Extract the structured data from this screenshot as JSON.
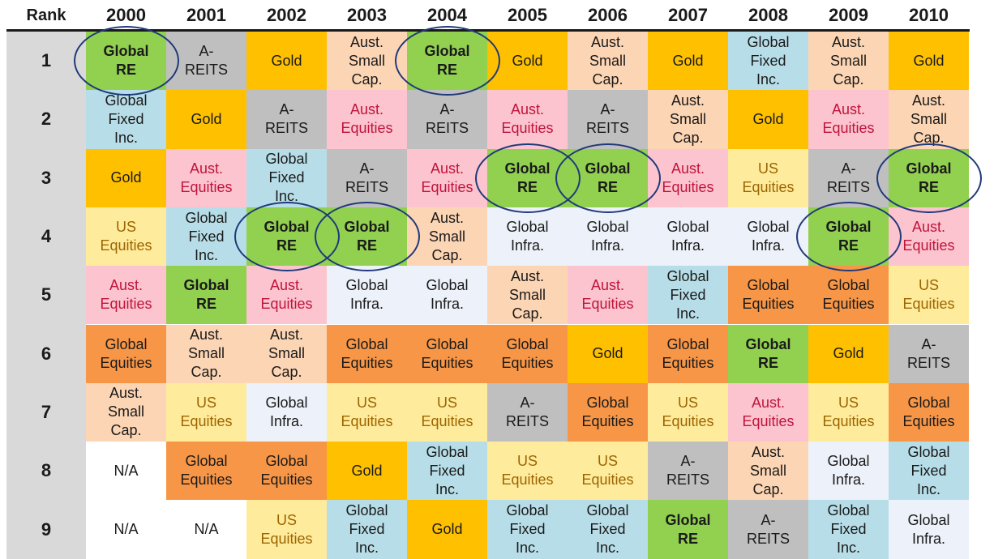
{
  "chart_data": {
    "type": "table",
    "header": {
      "rank_label": "Rank",
      "years": [
        "2000",
        "2001",
        "2002",
        "2003",
        "2004",
        "2005",
        "2006",
        "2007",
        "2008",
        "2009",
        "2010"
      ]
    },
    "ranks": [
      "1",
      "2",
      "3",
      "4",
      "5",
      "6",
      "7",
      "8",
      "9"
    ],
    "categories": {
      "global_re": {
        "label": "Global\nRE",
        "bg": "#92d050",
        "fg": "#1a1a1a",
        "bold": true
      },
      "areits": {
        "label": "A-\nREITS",
        "bg": "#bfbfbf",
        "fg": "#1a1a1a",
        "bold": false
      },
      "gold": {
        "label": "Gold",
        "bg": "#ffc000",
        "fg": "#1a1a1a",
        "bold": false
      },
      "aus_small": {
        "label": "Aust.\nSmall\nCap.",
        "bg": "#fcd5b4",
        "fg": "#1a1a1a",
        "bold": false
      },
      "global_fixed": {
        "label": "Global\nFixed\nInc.",
        "bg": "#b7dee8",
        "fg": "#1a1a1a",
        "bold": false
      },
      "aus_eq": {
        "label": "Aust.\nEquities",
        "bg": "#fbc4cf",
        "fg": "#c0143c",
        "bold": false
      },
      "us_eq": {
        "label": "US\nEquities",
        "bg": "#ffeb9c",
        "fg": "#9c6500",
        "bold": false
      },
      "global_infra": {
        "label": "Global\nInfra.",
        "bg": "#edf1f9",
        "fg": "#1a1a1a",
        "bold": false
      },
      "global_eq": {
        "label": "Global\nEquities",
        "bg": "#f79646",
        "fg": "#1a1a1a",
        "bold": false
      },
      "na": {
        "label": "N/A",
        "bg": "#ffffff",
        "fg": "#1a1a1a",
        "bold": false
      }
    },
    "grid": [
      [
        "global_re",
        "areits",
        "gold",
        "aus_small",
        "global_re",
        "gold",
        "aus_small",
        "gold",
        "global_fixed",
        "aus_small",
        "gold"
      ],
      [
        "global_fixed",
        "gold",
        "areits",
        "aus_eq",
        "areits",
        "aus_eq",
        "areits",
        "aus_small",
        "gold",
        "aus_eq",
        "aus_small"
      ],
      [
        "gold",
        "aus_eq",
        "global_fixed",
        "areits",
        "aus_eq",
        "global_re",
        "global_re",
        "aus_eq",
        "us_eq",
        "areits",
        "global_re"
      ],
      [
        "us_eq",
        "global_fixed",
        "global_re",
        "global_re",
        "aus_small",
        "global_infra",
        "global_infra",
        "global_infra",
        "global_infra",
        "global_re",
        "aus_eq"
      ],
      [
        "aus_eq",
        "global_re",
        "aus_eq",
        "global_infra",
        "global_infra",
        "aus_small",
        "aus_eq",
        "global_fixed",
        "global_eq",
        "global_eq",
        "us_eq"
      ],
      [
        "global_eq",
        "aus_small",
        "aus_small",
        "global_eq",
        "global_eq",
        "global_eq",
        "gold",
        "global_eq",
        "global_re",
        "gold",
        "areits"
      ],
      [
        "aus_small",
        "us_eq",
        "global_infra",
        "us_eq",
        "us_eq",
        "areits",
        "global_eq",
        "us_eq",
        "aus_eq",
        "us_eq",
        "global_eq"
      ],
      [
        "na",
        "global_eq",
        "global_eq",
        "gold",
        "global_fixed",
        "us_eq",
        "us_eq",
        "areits",
        "aus_small",
        "global_infra",
        "global_fixed"
      ],
      [
        "na",
        "na",
        "us_eq",
        "global_fixed",
        "gold",
        "global_fixed",
        "global_fixed",
        "global_re",
        "areits",
        "global_fixed",
        "global_infra"
      ]
    ],
    "highlighted": [
      [
        0,
        0
      ],
      [
        0,
        4
      ],
      [
        2,
        5
      ],
      [
        2,
        6
      ],
      [
        2,
        10
      ],
      [
        3,
        2
      ],
      [
        3,
        3
      ],
      [
        3,
        9
      ]
    ]
  }
}
